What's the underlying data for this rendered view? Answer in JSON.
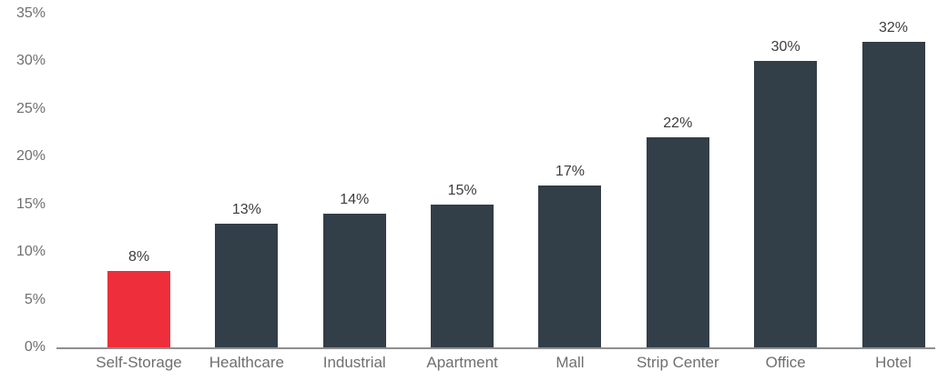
{
  "chart_data": {
    "type": "bar",
    "categories": [
      "Self-Storage",
      "Healthcare",
      "Industrial",
      "Apartment",
      "Mall",
      "Strip Center",
      "Office",
      "Hotel"
    ],
    "values": [
      8,
      13,
      14,
      15,
      17,
      22,
      30,
      32
    ],
    "value_labels": [
      "8%",
      "13%",
      "14%",
      "15%",
      "17%",
      "22%",
      "30%",
      "32%"
    ],
    "title": "",
    "xlabel": "",
    "ylabel": "",
    "ylim": [
      0,
      35
    ],
    "y_tick_labels": [
      "0%",
      "5%",
      "10%",
      "15%",
      "20%",
      "25%",
      "30%",
      "35%"
    ],
    "y_tick_values": [
      0,
      5,
      10,
      15,
      20,
      25,
      30,
      35
    ],
    "grid": false,
    "legend": false,
    "highlight_category": "Self-Storage",
    "colors": {
      "bar_default": "#323e48",
      "bar_highlight": "#ee2e3a",
      "axis_line": "#8f8f8f",
      "tick_label": "#6f6f6f",
      "category_label": "#6f6f6f",
      "value_label": "#3d3d3d",
      "background": "#ffffff"
    }
  }
}
